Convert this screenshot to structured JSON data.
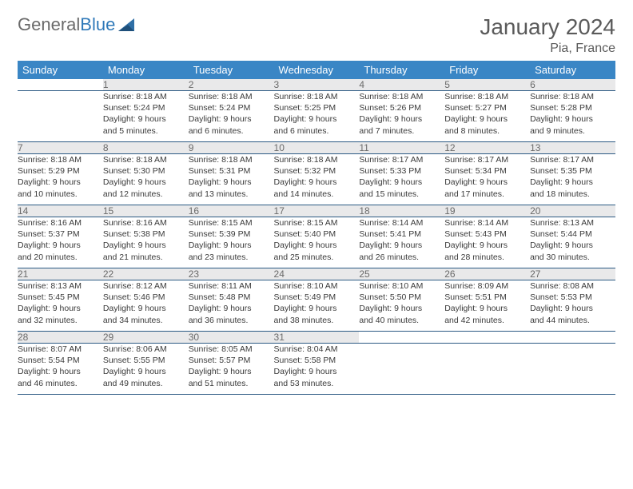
{
  "logo": {
    "word1": "General",
    "word2": "Blue"
  },
  "title": "January 2024",
  "location": "Pia, France",
  "colors": {
    "header_bg": "#3a86c5",
    "header_text": "#ffffff",
    "daynum_bg": "#e9e9ea",
    "row_border": "#2c5a84",
    "logo_gray": "#6a6a6a",
    "logo_blue": "#2f79b9"
  },
  "weekday_labels": [
    "Sunday",
    "Monday",
    "Tuesday",
    "Wednesday",
    "Thursday",
    "Friday",
    "Saturday"
  ],
  "weeks": [
    [
      null,
      {
        "n": "1",
        "sr": "Sunrise: 8:18 AM",
        "ss": "Sunset: 5:24 PM",
        "d1": "Daylight: 9 hours",
        "d2": "and 5 minutes."
      },
      {
        "n": "2",
        "sr": "Sunrise: 8:18 AM",
        "ss": "Sunset: 5:24 PM",
        "d1": "Daylight: 9 hours",
        "d2": "and 6 minutes."
      },
      {
        "n": "3",
        "sr": "Sunrise: 8:18 AM",
        "ss": "Sunset: 5:25 PM",
        "d1": "Daylight: 9 hours",
        "d2": "and 6 minutes."
      },
      {
        "n": "4",
        "sr": "Sunrise: 8:18 AM",
        "ss": "Sunset: 5:26 PM",
        "d1": "Daylight: 9 hours",
        "d2": "and 7 minutes."
      },
      {
        "n": "5",
        "sr": "Sunrise: 8:18 AM",
        "ss": "Sunset: 5:27 PM",
        "d1": "Daylight: 9 hours",
        "d2": "and 8 minutes."
      },
      {
        "n": "6",
        "sr": "Sunrise: 8:18 AM",
        "ss": "Sunset: 5:28 PM",
        "d1": "Daylight: 9 hours",
        "d2": "and 9 minutes."
      }
    ],
    [
      {
        "n": "7",
        "sr": "Sunrise: 8:18 AM",
        "ss": "Sunset: 5:29 PM",
        "d1": "Daylight: 9 hours",
        "d2": "and 10 minutes."
      },
      {
        "n": "8",
        "sr": "Sunrise: 8:18 AM",
        "ss": "Sunset: 5:30 PM",
        "d1": "Daylight: 9 hours",
        "d2": "and 12 minutes."
      },
      {
        "n": "9",
        "sr": "Sunrise: 8:18 AM",
        "ss": "Sunset: 5:31 PM",
        "d1": "Daylight: 9 hours",
        "d2": "and 13 minutes."
      },
      {
        "n": "10",
        "sr": "Sunrise: 8:18 AM",
        "ss": "Sunset: 5:32 PM",
        "d1": "Daylight: 9 hours",
        "d2": "and 14 minutes."
      },
      {
        "n": "11",
        "sr": "Sunrise: 8:17 AM",
        "ss": "Sunset: 5:33 PM",
        "d1": "Daylight: 9 hours",
        "d2": "and 15 minutes."
      },
      {
        "n": "12",
        "sr": "Sunrise: 8:17 AM",
        "ss": "Sunset: 5:34 PM",
        "d1": "Daylight: 9 hours",
        "d2": "and 17 minutes."
      },
      {
        "n": "13",
        "sr": "Sunrise: 8:17 AM",
        "ss": "Sunset: 5:35 PM",
        "d1": "Daylight: 9 hours",
        "d2": "and 18 minutes."
      }
    ],
    [
      {
        "n": "14",
        "sr": "Sunrise: 8:16 AM",
        "ss": "Sunset: 5:37 PM",
        "d1": "Daylight: 9 hours",
        "d2": "and 20 minutes."
      },
      {
        "n": "15",
        "sr": "Sunrise: 8:16 AM",
        "ss": "Sunset: 5:38 PM",
        "d1": "Daylight: 9 hours",
        "d2": "and 21 minutes."
      },
      {
        "n": "16",
        "sr": "Sunrise: 8:15 AM",
        "ss": "Sunset: 5:39 PM",
        "d1": "Daylight: 9 hours",
        "d2": "and 23 minutes."
      },
      {
        "n": "17",
        "sr": "Sunrise: 8:15 AM",
        "ss": "Sunset: 5:40 PM",
        "d1": "Daylight: 9 hours",
        "d2": "and 25 minutes."
      },
      {
        "n": "18",
        "sr": "Sunrise: 8:14 AM",
        "ss": "Sunset: 5:41 PM",
        "d1": "Daylight: 9 hours",
        "d2": "and 26 minutes."
      },
      {
        "n": "19",
        "sr": "Sunrise: 8:14 AM",
        "ss": "Sunset: 5:43 PM",
        "d1": "Daylight: 9 hours",
        "d2": "and 28 minutes."
      },
      {
        "n": "20",
        "sr": "Sunrise: 8:13 AM",
        "ss": "Sunset: 5:44 PM",
        "d1": "Daylight: 9 hours",
        "d2": "and 30 minutes."
      }
    ],
    [
      {
        "n": "21",
        "sr": "Sunrise: 8:13 AM",
        "ss": "Sunset: 5:45 PM",
        "d1": "Daylight: 9 hours",
        "d2": "and 32 minutes."
      },
      {
        "n": "22",
        "sr": "Sunrise: 8:12 AM",
        "ss": "Sunset: 5:46 PM",
        "d1": "Daylight: 9 hours",
        "d2": "and 34 minutes."
      },
      {
        "n": "23",
        "sr": "Sunrise: 8:11 AM",
        "ss": "Sunset: 5:48 PM",
        "d1": "Daylight: 9 hours",
        "d2": "and 36 minutes."
      },
      {
        "n": "24",
        "sr": "Sunrise: 8:10 AM",
        "ss": "Sunset: 5:49 PM",
        "d1": "Daylight: 9 hours",
        "d2": "and 38 minutes."
      },
      {
        "n": "25",
        "sr": "Sunrise: 8:10 AM",
        "ss": "Sunset: 5:50 PM",
        "d1": "Daylight: 9 hours",
        "d2": "and 40 minutes."
      },
      {
        "n": "26",
        "sr": "Sunrise: 8:09 AM",
        "ss": "Sunset: 5:51 PM",
        "d1": "Daylight: 9 hours",
        "d2": "and 42 minutes."
      },
      {
        "n": "27",
        "sr": "Sunrise: 8:08 AM",
        "ss": "Sunset: 5:53 PM",
        "d1": "Daylight: 9 hours",
        "d2": "and 44 minutes."
      }
    ],
    [
      {
        "n": "28",
        "sr": "Sunrise: 8:07 AM",
        "ss": "Sunset: 5:54 PM",
        "d1": "Daylight: 9 hours",
        "d2": "and 46 minutes."
      },
      {
        "n": "29",
        "sr": "Sunrise: 8:06 AM",
        "ss": "Sunset: 5:55 PM",
        "d1": "Daylight: 9 hours",
        "d2": "and 49 minutes."
      },
      {
        "n": "30",
        "sr": "Sunrise: 8:05 AM",
        "ss": "Sunset: 5:57 PM",
        "d1": "Daylight: 9 hours",
        "d2": "and 51 minutes."
      },
      {
        "n": "31",
        "sr": "Sunrise: 8:04 AM",
        "ss": "Sunset: 5:58 PM",
        "d1": "Daylight: 9 hours",
        "d2": "and 53 minutes."
      },
      null,
      null,
      null
    ]
  ]
}
